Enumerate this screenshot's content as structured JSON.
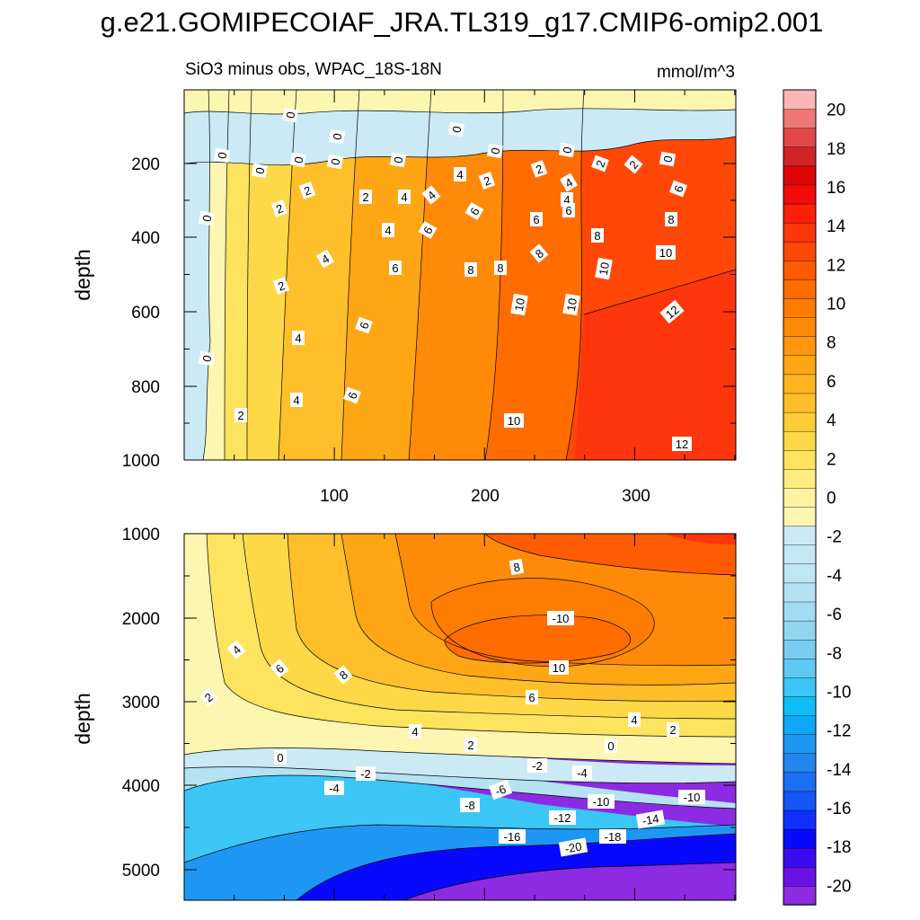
{
  "chart_data": {
    "type": "contour",
    "title": "g.e21.GOMIPECOIAF_JRA.TL319_g17.CMIP6-omip2.001",
    "subtitle_left": "SiO3 minus obs, WPAC_18S-18N",
    "subtitle_right": "mmol/m^3",
    "panels": [
      {
        "name": "upper",
        "ylabel": "depth",
        "xlim": [
          1,
          368
        ],
        "ylim": [
          1000,
          0
        ],
        "y_ticks": [
          "200",
          "400",
          "600",
          "800",
          "1000"
        ],
        "x_ticks": [
          "100",
          "200",
          "300"
        ],
        "contour_labels": [
          "0",
          "0",
          "0",
          "0",
          "0",
          "0",
          "0",
          "0",
          "0",
          "0",
          "0",
          "0",
          "0",
          "2",
          "2",
          "2",
          "2",
          "2",
          "2",
          "2",
          "2",
          "2",
          "4",
          "4",
          "4",
          "4",
          "4",
          "4",
          "4",
          "4",
          "4",
          "6",
          "6",
          "6",
          "6",
          "6",
          "6",
          "6",
          "6",
          "8",
          "8",
          "8",
          "8",
          "8",
          "10",
          "10",
          "10",
          "10",
          "10",
          "12",
          "12"
        ]
      },
      {
        "name": "lower",
        "ylabel": "depth",
        "xlim": [
          1,
          368
        ],
        "ylim": [
          5350,
          1000
        ],
        "y_ticks": [
          "1000",
          "2000",
          "3000",
          "4000",
          "5000"
        ],
        "contour_labels": [
          "8",
          "-10",
          "10",
          "2",
          "4",
          "6",
          "8",
          "6",
          "2",
          "4",
          "4",
          "2",
          "0",
          "0",
          "-2",
          "-2",
          "-4",
          "-4",
          "-6",
          "-8",
          "-10",
          "-10",
          "-12",
          "-14",
          "-16",
          "-18",
          "-20"
        ]
      }
    ],
    "colorbar": {
      "levels": [
        "20",
        "18",
        "16",
        "14",
        "12",
        "10",
        "8",
        "6",
        "4",
        "2",
        "0",
        "-2",
        "-4",
        "-6",
        "-8",
        "-10",
        "-12",
        "-14",
        "-16",
        "-18",
        "-20"
      ],
      "range": [
        -21,
        21
      ],
      "step": 1,
      "colors": [
        "#8C2BE2",
        "#6A12E3",
        "#3C0AF0",
        "#0808FF",
        "#0F2FFF",
        "#1455F5",
        "#1C6FF0",
        "#2385EE",
        "#1E97F4",
        "#10A8F4",
        "#0FBEF6",
        "#3CC6F5",
        "#60C9F2",
        "#79CDF0",
        "#92D5EF",
        "#A3DCF2",
        "#B4E2F3",
        "#BEE6F4",
        "#C4E8F5",
        "#CCEAF6",
        "#FDF6B0",
        "#FFF3A3",
        "#FFEC7E",
        "#FEE35F",
        "#FDD948",
        "#FDCB36",
        "#FFBF2A",
        "#FFB41F",
        "#FFA615",
        "#FF970E",
        "#FF8A08",
        "#FF7C03",
        "#FF6D00",
        "#FF5B03",
        "#FF4808",
        "#FF350C",
        "#FF1E08",
        "#F20B0B",
        "#DD0505",
        "#CF2325",
        "#E04848",
        "#F07777",
        "#FEB6B6"
      ]
    }
  }
}
